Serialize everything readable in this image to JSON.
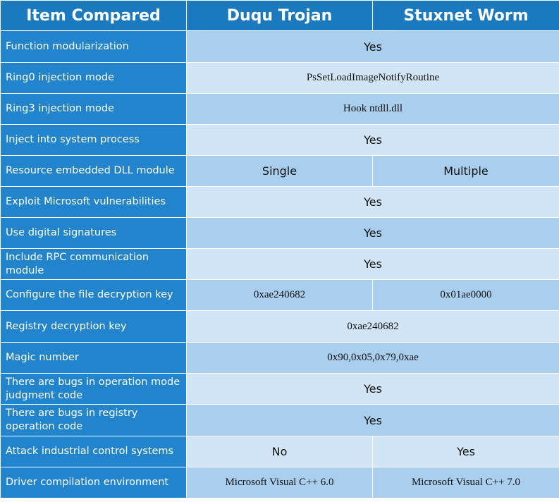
{
  "header": {
    "col_item": "Item Compared",
    "col_duqu": "Duqu Trojan",
    "col_stuxnet": "Stuxnet Worm"
  },
  "rows": [
    {
      "item": "Function modularization",
      "both": "Yes"
    },
    {
      "item": "Ring0 injection mode",
      "both": "PsSetLoadImageNotifyRoutine"
    },
    {
      "item": "Ring3 injection mode",
      "both": "Hook ntdll.dll"
    },
    {
      "item": "Inject into system process",
      "both": "Yes"
    },
    {
      "item": "Resource embedded DLL module",
      "duqu": "Single",
      "stuxnet": "Multiple"
    },
    {
      "item": "Exploit Microsoft vulnerabilities",
      "both": "Yes"
    },
    {
      "item": "Use digital signatures",
      "both": "Yes"
    },
    {
      "item": "Include RPC communication module",
      "both": "Yes"
    },
    {
      "item": "Configure the file decryption key",
      "duqu": "0xae240682",
      "stuxnet": "0x01ae0000"
    },
    {
      "item": "Registry decryption key",
      "both": "0xae240682"
    },
    {
      "item": "Magic number",
      "both": "0x90,0x05,0x79,0xae"
    },
    {
      "item": "There are bugs in operation mode judgment code",
      "both": "Yes"
    },
    {
      "item": "There are bugs in registry operation code",
      "both": "Yes"
    },
    {
      "item": "Attack industrial control systems",
      "duqu": "No",
      "stuxnet": "Yes"
    },
    {
      "item": "Driver compilation environment",
      "duqu": "Microsoft Visual C++ 6.0",
      "stuxnet": "Microsoft Visual C++ 7.0"
    }
  ]
}
